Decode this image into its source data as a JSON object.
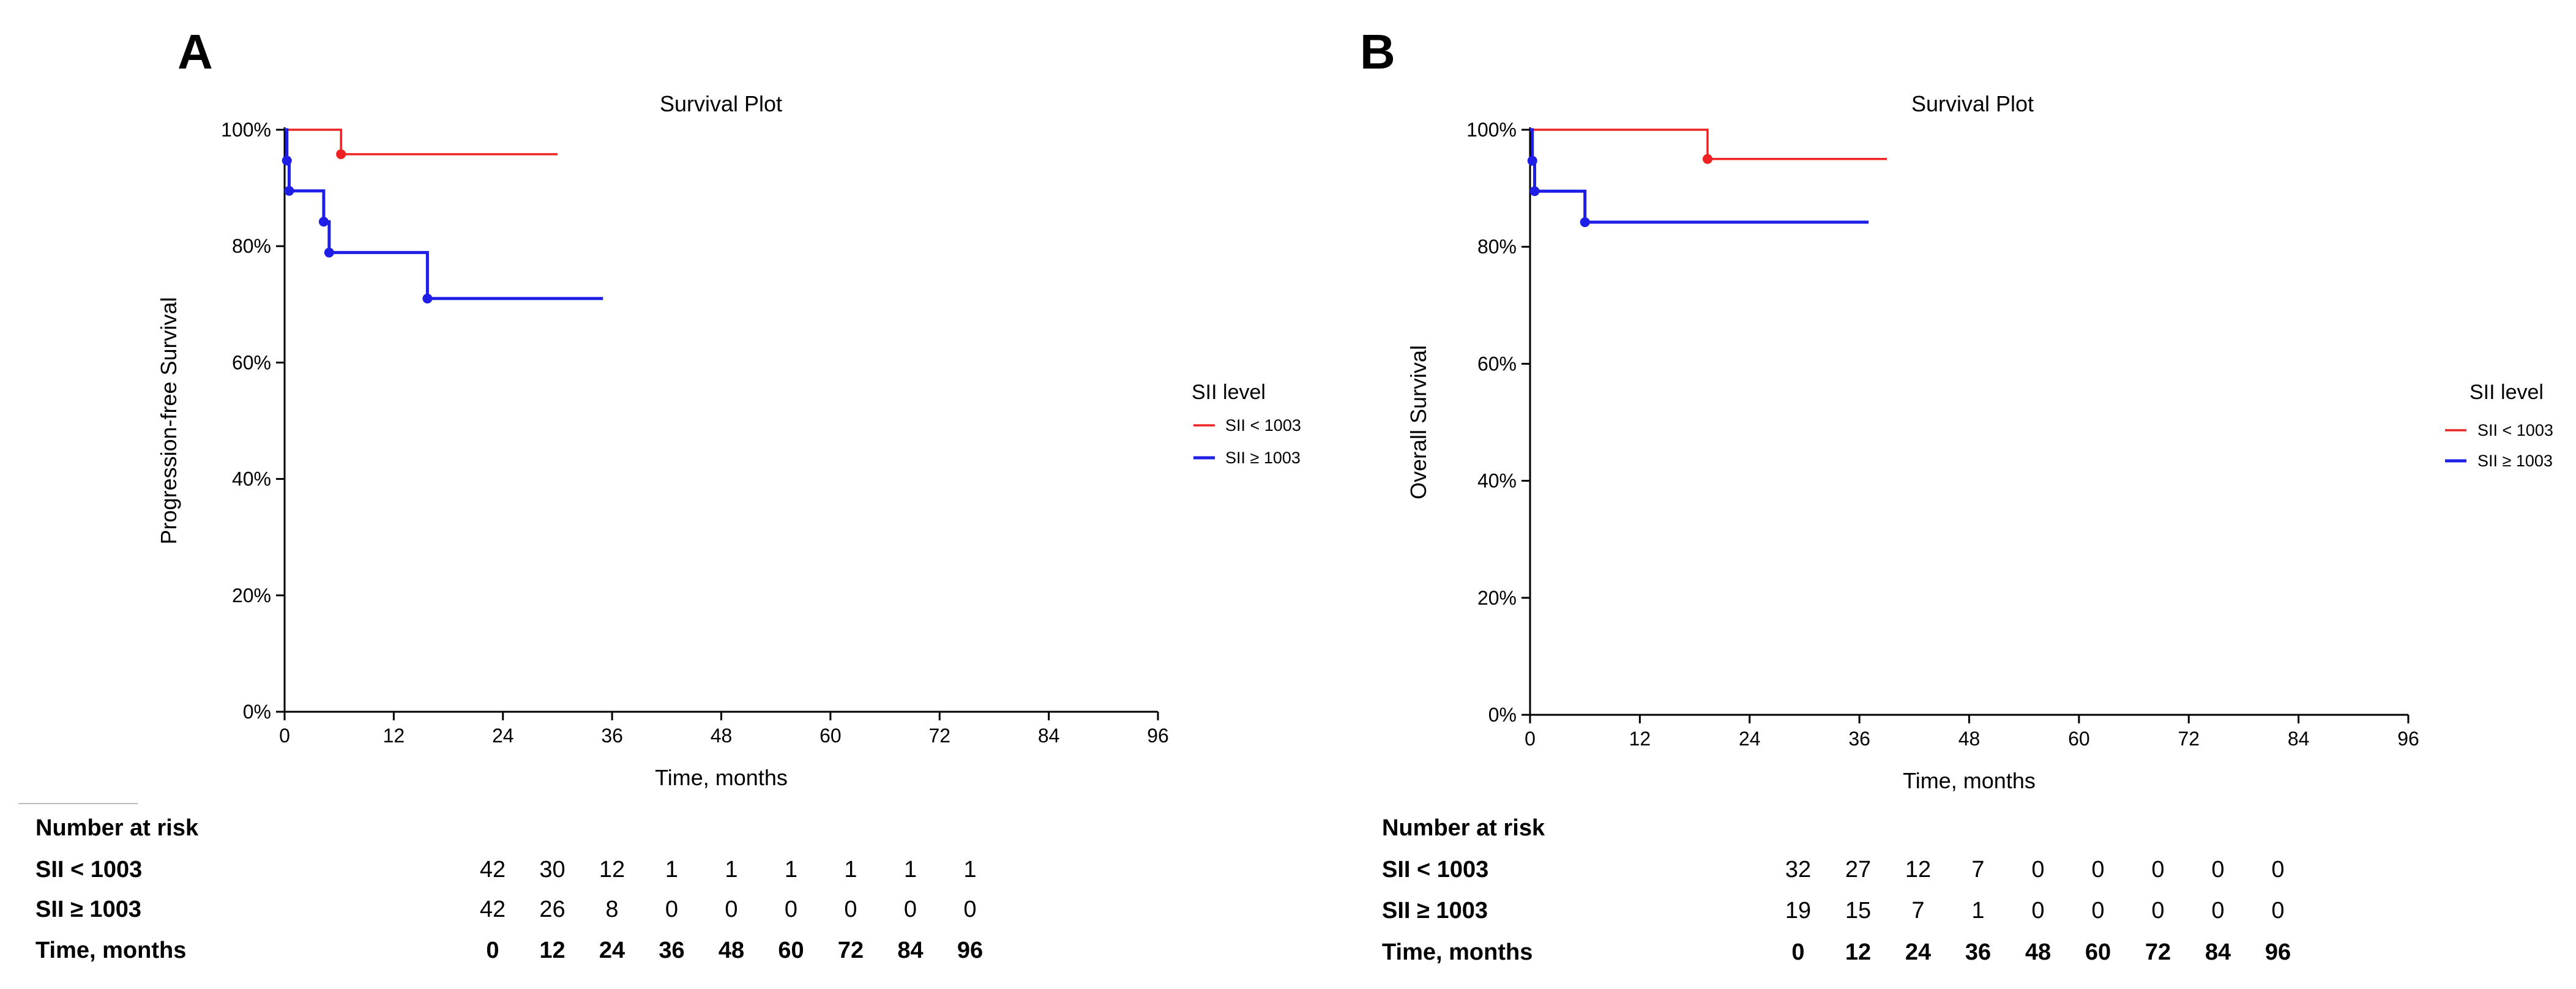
{
  "colors": {
    "red": "#ee2222",
    "blue": "#1e1ee6",
    "axis": "#000000",
    "text": "#000000"
  },
  "chart_data": [
    {
      "type": "line",
      "panel_label": "A",
      "title": "Survival Plot",
      "xlabel": "Time, months",
      "ylabel": "Progression-free Survival",
      "xlim": [
        0,
        96
      ],
      "ylim": [
        0,
        100
      ],
      "x_ticks": [
        0,
        12,
        24,
        36,
        48,
        60,
        72,
        84,
        96
      ],
      "y_ticks": [
        0,
        20,
        40,
        60,
        80,
        100
      ],
      "y_tick_labels": [
        "0%",
        "20%",
        "40%",
        "60%",
        "80%",
        "100%"
      ],
      "legend_title": "SII level",
      "legend_position": "right",
      "series": [
        {
          "name": "SII < 1003",
          "color": "#ee2222",
          "steps": [
            [
              0,
              100
            ],
            [
              6.2,
              95.8
            ],
            [
              30,
              95.8
            ]
          ],
          "censor_marks": [
            [
              6.2,
              95.8
            ]
          ]
        },
        {
          "name": "SII ≥ 1003",
          "color": "#1e1ee6",
          "steps": [
            [
              0,
              100
            ],
            [
              0.25,
              94.7
            ],
            [
              0.5,
              89.5
            ],
            [
              4.3,
              84.2
            ],
            [
              4.9,
              78.9
            ],
            [
              15.7,
              71.0
            ],
            [
              35,
              71.0
            ]
          ],
          "censor_marks": [
            [
              0.25,
              94.7
            ],
            [
              0.5,
              89.5
            ],
            [
              4.3,
              84.2
            ],
            [
              4.9,
              78.9
            ],
            [
              15.7,
              71.0
            ]
          ]
        }
      ],
      "risk_table": {
        "header": "Number at risk",
        "rows": [
          {
            "label": "SII < 1003",
            "values": [
              "42",
              "30",
              "12",
              "1",
              "1",
              "1",
              "1",
              "1",
              "1"
            ]
          },
          {
            "label": "SII ≥ 1003",
            "values": [
              "42",
              "26",
              "8",
              "0",
              "0",
              "0",
              "0",
              "0",
              "0"
            ]
          }
        ],
        "time_label": "Time, months",
        "times": [
          "0",
          "12",
          "24",
          "36",
          "48",
          "60",
          "72",
          "84",
          "96"
        ]
      }
    },
    {
      "type": "line",
      "panel_label": "B",
      "title": "Survival Plot",
      "xlabel": "Time, months",
      "ylabel": "Overall Survival",
      "xlim": [
        0,
        96
      ],
      "ylim": [
        0,
        100
      ],
      "x_ticks": [
        0,
        12,
        24,
        36,
        48,
        60,
        72,
        84,
        96
      ],
      "y_ticks": [
        0,
        20,
        40,
        60,
        80,
        100
      ],
      "y_tick_labels": [
        "0%",
        "20%",
        "40%",
        "60%",
        "80%",
        "100%"
      ],
      "legend_title": "SII level",
      "legend_position": "right",
      "series": [
        {
          "name": "SII < 1003",
          "color": "#ee2222",
          "steps": [
            [
              0,
              100
            ],
            [
              19.4,
              95.0
            ],
            [
              39,
              95.0
            ]
          ],
          "censor_marks": [
            [
              19.4,
              95.0
            ]
          ]
        },
        {
          "name": "SII ≥ 1003",
          "color": "#1e1ee6",
          "steps": [
            [
              0,
              100
            ],
            [
              0.25,
              94.7
            ],
            [
              0.5,
              89.5
            ],
            [
              6.0,
              84.2
            ],
            [
              37,
              84.2
            ]
          ],
          "censor_marks": [
            [
              0.25,
              94.7
            ],
            [
              0.5,
              89.5
            ],
            [
              6.0,
              84.2
            ]
          ]
        }
      ],
      "risk_table": {
        "header": "Number at risk",
        "rows": [
          {
            "label": "SII < 1003",
            "values": [
              "32",
              "27",
              "12",
              "7",
              "0",
              "0",
              "0",
              "0",
              "0"
            ]
          },
          {
            "label": "SII ≥ 1003",
            "values": [
              "19",
              "15",
              "7",
              "1",
              "0",
              "0",
              "0",
              "0",
              "0"
            ]
          }
        ],
        "time_label": "Time, months",
        "times": [
          "0",
          "12",
          "24",
          "36",
          "48",
          "60",
          "72",
          "84",
          "96"
        ]
      }
    }
  ]
}
